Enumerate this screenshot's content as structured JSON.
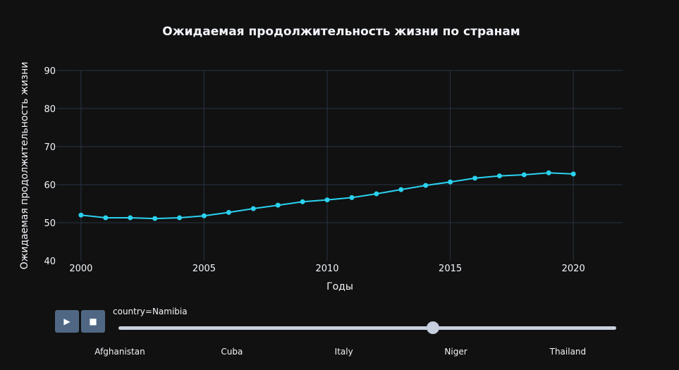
{
  "chart_data": {
    "type": "line",
    "title": "Ожидаемая продолжительность жизни по странам",
    "xlabel": "Годы",
    "ylabel": "Ожидаемая продолжительность жизни",
    "xlim": [
      1999,
      2022
    ],
    "ylim": [
      40,
      90
    ],
    "x_ticks": [
      "2000",
      "2005",
      "2010",
      "2015",
      "2020"
    ],
    "y_ticks": [
      "40",
      "50",
      "60",
      "70",
      "80",
      "90"
    ],
    "grid": true,
    "color": "#2ad2f0",
    "x": [
      2000,
      2001,
      2002,
      2003,
      2004,
      2005,
      2006,
      2007,
      2008,
      2009,
      2010,
      2011,
      2012,
      2013,
      2014,
      2015,
      2016,
      2017,
      2018,
      2019,
      2020
    ],
    "y": [
      52.0,
      51.3,
      51.3,
      51.1,
      51.3,
      51.8,
      52.7,
      53.7,
      54.6,
      55.5,
      56.0,
      56.6,
      57.6,
      58.7,
      59.8,
      60.7,
      61.7,
      62.3,
      62.6,
      63.1,
      62.8
    ]
  },
  "animation": {
    "play_icon": "▶",
    "stop_icon": "■",
    "current_label": "country=Namibia",
    "current_fraction": 0.632,
    "steps": [
      {
        "label": "Afghanistan",
        "fraction": 0.0
      },
      {
        "label": "Cuba",
        "fraction": 0.225
      },
      {
        "label": "Italy",
        "fraction": 0.45
      },
      {
        "label": "Niger",
        "fraction": 0.675
      },
      {
        "label": "Thailand",
        "fraction": 0.9
      }
    ]
  }
}
